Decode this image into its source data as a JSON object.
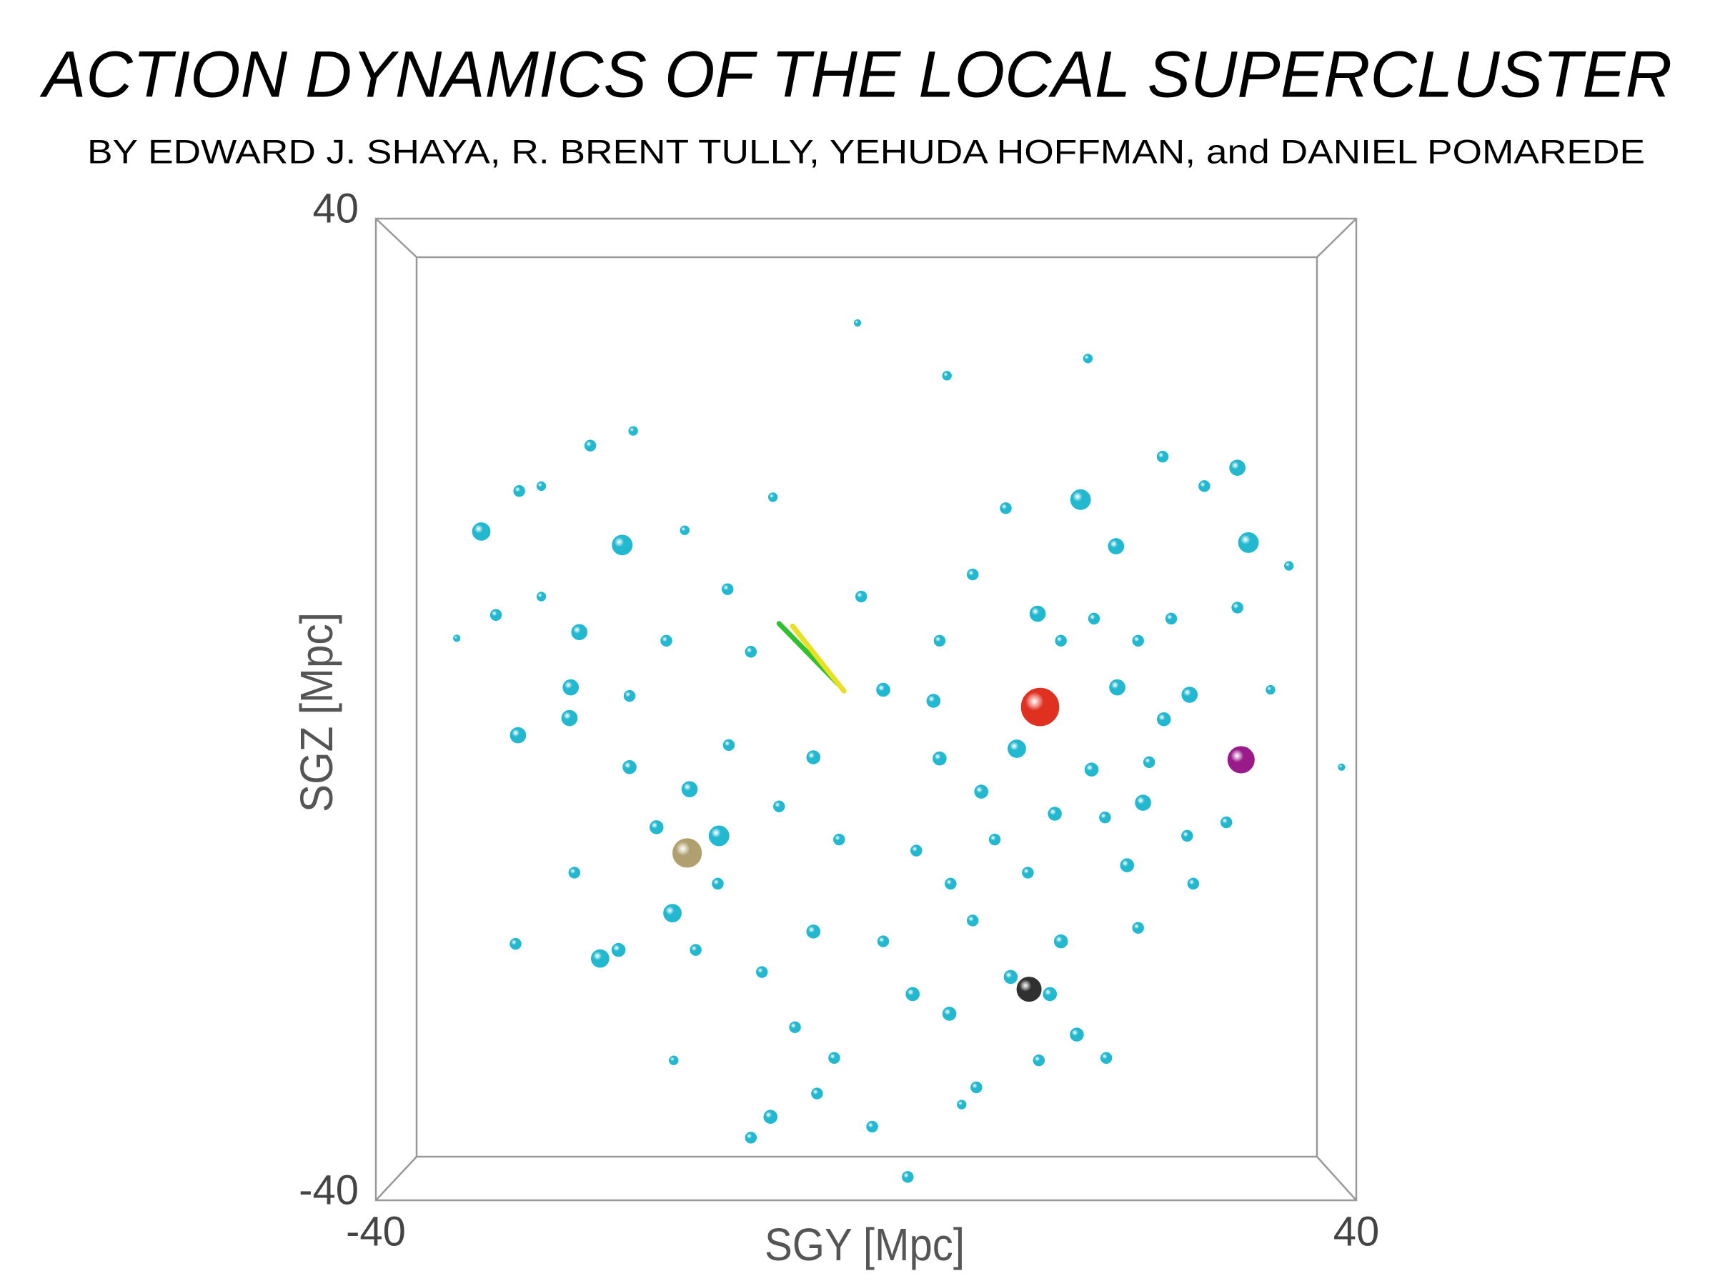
{
  "chart_data": {
    "type": "scatter",
    "title": "ACTION DYNAMICS OF THE LOCAL SUPERCLUSTER",
    "subtitle": "BY EDWARD J. SHAYA, R. BRENT TULLY, YEHUDA HOFFMAN, and DANIEL POMAREDE",
    "x_label": "SGY [Mpc]",
    "y_label": "SGZ [Mpc]",
    "xlim": [
      -40,
      40
    ],
    "ylim": [
      -40,
      40
    ],
    "xticks": [
      -40,
      40
    ],
    "yticks": [
      -40,
      40
    ],
    "series": [
      {
        "color": "#22b8d0",
        "x": [
          -31.4,
          -19.9,
          17.5,
          31.2,
          30.3,
          -22.5,
          -28.4,
          -24.2,
          -24.1,
          -21.7,
          -28.6,
          -15.8,
          -12.0,
          12.3,
          20.4,
          22.6,
          26.4,
          20.5,
          17.2,
          -4.3,
          -7.8,
          3.4,
          6.6,
          -0.7,
          34.5,
          38.8,
          -33.4,
          -30.2,
          -23.4,
          -16.3,
          -11.3,
          -7.6,
          14.0,
          24.2,
          24.3,
          15.4,
          18.4,
          9.4,
          6.0,
          1.4,
          5.5,
          -4.3,
          -14.4,
          -19.3,
          -17.1,
          -23.8,
          -20.2,
          -5.8,
          3.8,
          6.8,
          8.7,
          1.4,
          15.9,
          21.3,
          26.2,
          26.7,
          11.8,
          15.0,
          -2.6,
          -9.4,
          0.5,
          9.0,
          19.6,
          22.2,
          29.4,
          22.2,
          30.3,
          27.6,
          33.0,
          18.1,
          11.4,
          8.7,
          15.9,
          -0.4,
          -9.4,
          -19.3,
          -26.5,
          -26.5,
          -28.3,
          -19.0,
          -14.8,
          -11.2,
          -7.1,
          -2.2,
          4.1,
          10.5,
          6.9,
          13.2,
          19.5,
          23.1,
          18.6,
          6.0,
          -13.9,
          -12.1,
          -8.5,
          -4.0,
          -15.7,
          14.1,
          7.8,
          24.9
        ],
        "y": [
          14.5,
          13.4,
          17.1,
          13.6,
          19.7,
          21.5,
          -2.1,
          -0.7,
          1.8,
          -20.3,
          -19.1,
          -16.6,
          -10.3,
          -3.2,
          13.3,
          -7.6,
          1.2,
          1.8,
          -26.5,
          -18.1,
          -33.2,
          -38.1,
          27.2,
          31.5,
          11.7,
          -4.7,
          5.8,
          7.7,
          6.3,
          5.6,
          9.8,
          17.3,
          7.8,
          20.6,
          -0.8,
          -8.5,
          -4.9,
          -6.7,
          -4.0,
          1.6,
          0.7,
          -3.9,
          -6.5,
          -4.7,
          -9.6,
          -13.3,
          -19.6,
          -25.9,
          -23.2,
          -24.8,
          -17.2,
          -18.9,
          -18.9,
          -12.7,
          -10.3,
          -14.2,
          -21.8,
          -23.2,
          -28.4,
          -34.9,
          -34.0,
          -30.8,
          -28.4,
          -17.8,
          -9.2,
          5.6,
          8.3,
          18.2,
          1.6,
          28.6,
          16.4,
          11.0,
          5.6,
          9.2,
          4.7,
          1.1,
          9.2,
          18.2,
          17.8,
          22.7,
          14.6,
          -2.9,
          -7.9,
          -10.6,
          -11.5,
          -10.6,
          -14.2,
          -13.3,
          -8.8,
          -4.3,
          7.4,
          5.6,
          -19.6,
          -14.2,
          -21.4,
          -31.3,
          -28.6,
          -28.6,
          -32.2,
          7.4
        ],
        "sizes": [
          8,
          9,
          9,
          9,
          7,
          5,
          7,
          7,
          7,
          8,
          5,
          8,
          9,
          8,
          7,
          7,
          7,
          7,
          6,
          6,
          6,
          5,
          4,
          3,
          4,
          3,
          3,
          5,
          7,
          5,
          5,
          4,
          7,
          5,
          6,
          6,
          6,
          6,
          6,
          6,
          6,
          6,
          7,
          6,
          6,
          5,
          6,
          5,
          6,
          6,
          5,
          5,
          6,
          6,
          5,
          5,
          6,
          6,
          5,
          5,
          5,
          5,
          5,
          5,
          5,
          5,
          5,
          5,
          4,
          4,
          5,
          5,
          5,
          5,
          5,
          5,
          4,
          4,
          5,
          4,
          4,
          5,
          5,
          5,
          5,
          5,
          5,
          5,
          5,
          5,
          5,
          5,
          5,
          5,
          5,
          5,
          4,
          5,
          4,
          5
        ]
      },
      {
        "color": "#e03020",
        "x": [
          14.2
        ],
        "y": [
          0.2
        ],
        "sizes": [
          17
        ]
      },
      {
        "color": "#9a1a8a",
        "x": [
          30.6
        ],
        "y": [
          -4.1
        ],
        "sizes": [
          12
        ]
      },
      {
        "color": "#b0a070",
        "x": [
          -14.6
        ],
        "y": [
          -11.7
        ],
        "sizes": [
          13
        ]
      },
      {
        "color": "#303030",
        "x": [
          13.3
        ],
        "y": [
          -22.8
        ],
        "sizes": [
          11
        ]
      }
    ],
    "lines": [
      {
        "color": "#30c030",
        "x": [
          -7.1,
          -2.2
        ],
        "y": [
          7.0,
          2.0
        ]
      },
      {
        "color": "#e8e020",
        "x": [
          -6.0,
          -1.8
        ],
        "y": [
          6.8,
          1.5
        ]
      }
    ]
  }
}
